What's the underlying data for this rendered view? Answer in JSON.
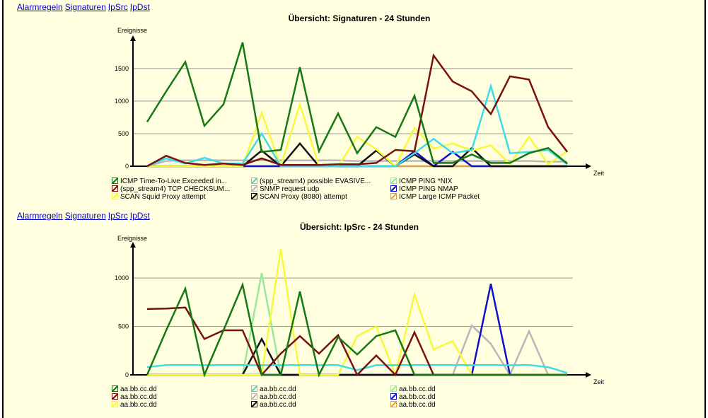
{
  "nav": {
    "links": [
      "Alarmregeln",
      "Signaturen",
      "IpSrc",
      "IpDst"
    ]
  },
  "chart_data": [
    {
      "type": "line",
      "title": "Übersicht: Signaturen - 24 Stunden",
      "ylabel": "Ereignisse",
      "xlabel": "Zeit",
      "ylim": [
        0,
        1900
      ],
      "yticks": [
        0,
        500,
        1000,
        1500
      ],
      "grid": true,
      "legend_position": "bottom",
      "series": [
        {
          "name": "ICMP Time-To-Live Exceeded in...",
          "color": "#147814",
          "values": [
            680,
            1150,
            1600,
            620,
            950,
            1900,
            220,
            250,
            1520,
            230,
            810,
            200,
            600,
            450,
            1080,
            50,
            50,
            180,
            50,
            50,
            200,
            280,
            40
          ]
        },
        {
          "name": "(spp_stream4) possible EVASIVE...",
          "color": "#3CDCE8",
          "values": [
            0,
            120,
            40,
            130,
            40,
            40,
            500,
            0,
            0,
            0,
            0,
            0,
            0,
            0,
            200,
            420,
            200,
            250,
            1230,
            200,
            220,
            250,
            30
          ]
        },
        {
          "name": "ICMP PING *NIX",
          "color": "#9AE89A",
          "values": [
            0,
            0,
            0,
            0,
            0,
            0,
            0,
            0,
            0,
            0,
            0,
            0,
            0,
            0,
            0,
            0,
            0,
            0,
            0,
            0,
            0,
            0,
            0
          ]
        },
        {
          "name": "(spp_stream4) TCP CHECKSUM...",
          "color": "#7A1010",
          "values": [
            0,
            160,
            50,
            20,
            40,
            20,
            120,
            20,
            20,
            20,
            30,
            30,
            50,
            250,
            230,
            1700,
            1300,
            1150,
            800,
            1380,
            1330,
            600,
            220
          ]
        },
        {
          "name": "SNMP request udp",
          "color": "#B8B8B8",
          "values": [
            0,
            80,
            90,
            90,
            90,
            90,
            90,
            90,
            90,
            90,
            90,
            80,
            80,
            80,
            80,
            80,
            80,
            80,
            80,
            80,
            80,
            70,
            70
          ]
        },
        {
          "name": "ICMP PING NMAP",
          "color": "#1010C8",
          "values": [
            0,
            0,
            0,
            0,
            0,
            0,
            0,
            0,
            0,
            0,
            0,
            0,
            0,
            0,
            230,
            0,
            220,
            0,
            0,
            0,
            0,
            0,
            0
          ]
        },
        {
          "name": "SCAN Squid Proxy attempt",
          "color": "#F8F83C",
          "values": [
            0,
            0,
            0,
            0,
            0,
            0,
            820,
            0,
            950,
            0,
            0,
            450,
            260,
            0,
            590,
            270,
            350,
            240,
            320,
            30,
            450,
            30,
            230
          ]
        },
        {
          "name": "SCAN Proxy (8080) attempt",
          "color": "#101010",
          "values": [
            0,
            0,
            0,
            0,
            0,
            0,
            240,
            0,
            350,
            0,
            0,
            0,
            240,
            0,
            180,
            0,
            0,
            280,
            0,
            0,
            0,
            0,
            0
          ]
        },
        {
          "name": "ICMP Large ICMP Packet",
          "color": "#E0A050",
          "values": [
            0,
            0,
            0,
            0,
            0,
            0,
            0,
            0,
            0,
            0,
            0,
            0,
            0,
            0,
            0,
            0,
            0,
            0,
            0,
            0,
            0,
            0,
            0
          ]
        }
      ]
    },
    {
      "type": "line",
      "title": "Übersicht: IpSrc - 24 Stunden",
      "ylabel": "Ereignisse",
      "xlabel": "Zeit",
      "ylim": [
        0,
        1300
      ],
      "yticks": [
        0,
        500,
        1000
      ],
      "grid": true,
      "legend_position": "bottom",
      "series": [
        {
          "name": "aa.bb.cc.dd",
          "color": "#147814",
          "values": [
            0,
            460,
            890,
            0,
            460,
            930,
            0,
            0,
            860,
            0,
            390,
            210,
            400,
            460,
            0,
            0,
            0,
            0,
            0,
            0,
            0,
            0,
            0
          ]
        },
        {
          "name": "aa.bb.cc.dd",
          "color": "#3CDCE8",
          "values": [
            80,
            100,
            100,
            100,
            100,
            100,
            100,
            100,
            100,
            100,
            100,
            50,
            100,
            100,
            100,
            100,
            100,
            100,
            100,
            100,
            100,
            80,
            20
          ]
        },
        {
          "name": "aa.bb.cc.dd",
          "color": "#9AE89A",
          "values": [
            0,
            0,
            0,
            0,
            0,
            0,
            1050,
            0,
            0,
            0,
            0,
            0,
            0,
            0,
            0,
            0,
            0,
            0,
            0,
            0,
            0,
            0,
            0
          ]
        },
        {
          "name": "aa.bb.cc.dd",
          "color": "#7A1010",
          "values": [
            680,
            685,
            695,
            370,
            460,
            460,
            0,
            220,
            400,
            220,
            410,
            0,
            200,
            0,
            440,
            0,
            0,
            0,
            0,
            0,
            0,
            0,
            0
          ]
        },
        {
          "name": "aa.bb.cc.dd",
          "color": "#B8B8B8",
          "values": [
            0,
            0,
            0,
            0,
            0,
            0,
            0,
            0,
            0,
            0,
            0,
            0,
            0,
            0,
            0,
            0,
            0,
            510,
            320,
            0,
            450,
            0,
            0
          ]
        },
        {
          "name": "aa.bb.cc.dd",
          "color": "#1010C8",
          "values": [
            0,
            0,
            0,
            0,
            0,
            0,
            0,
            0,
            0,
            0,
            0,
            0,
            0,
            0,
            0,
            0,
            0,
            0,
            940,
            0,
            0,
            0,
            0
          ]
        },
        {
          "name": "aa.bb.cc.dd",
          "color": "#F8F83C",
          "values": [
            0,
            0,
            0,
            0,
            0,
            0,
            0,
            1300,
            0,
            0,
            0,
            400,
            500,
            0,
            830,
            260,
            350,
            0,
            0,
            0,
            0,
            0,
            0
          ]
        },
        {
          "name": "aa.bb.cc.dd",
          "color": "#101010",
          "values": [
            0,
            0,
            0,
            0,
            0,
            0,
            370,
            0,
            0,
            0,
            0,
            0,
            0,
            0,
            0,
            0,
            0,
            0,
            0,
            0,
            0,
            0,
            0
          ]
        },
        {
          "name": "aa.bb.cc.dd",
          "color": "#E0A050",
          "values": [
            0,
            0,
            0,
            0,
            0,
            0,
            0,
            0,
            0,
            0,
            0,
            0,
            0,
            0,
            0,
            0,
            0,
            0,
            0,
            0,
            0,
            0,
            0
          ]
        }
      ]
    }
  ]
}
